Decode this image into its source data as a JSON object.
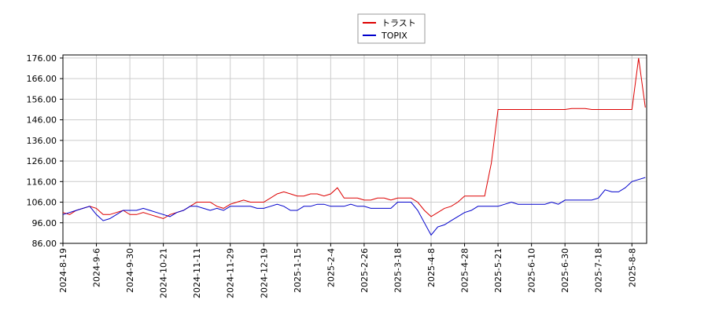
{
  "chart_data": {
    "type": "line",
    "categories": [
      "2024-8-19",
      null,
      null,
      null,
      null,
      "2024-9-6",
      null,
      null,
      null,
      null,
      "2024-9-30",
      null,
      null,
      null,
      null,
      "2024-10-21",
      null,
      null,
      null,
      null,
      "2024-11-11",
      null,
      null,
      null,
      null,
      "2024-11-29",
      null,
      null,
      null,
      null,
      "2024-12-19",
      null,
      null,
      null,
      null,
      "2025-1-15",
      null,
      null,
      null,
      null,
      "2025-2-4",
      null,
      null,
      null,
      null,
      "2025-2-26",
      null,
      null,
      null,
      null,
      "2025-3-18",
      null,
      null,
      null,
      null,
      "2025-4-8",
      null,
      null,
      null,
      null,
      "2025-4-28",
      null,
      null,
      null,
      null,
      "2025-5-21",
      null,
      null,
      null,
      null,
      "2025-6-10",
      null,
      null,
      null,
      null,
      "2025-6-30",
      null,
      null,
      null,
      null,
      "2025-7-18",
      null,
      null,
      null,
      null,
      "2025-8-8",
      null,
      null
    ],
    "series": [
      {
        "name": "トラスト",
        "color": "#dd0000",
        "values": [
          101,
          100,
          102,
          103,
          104,
          103,
          100,
          100,
          101,
          102,
          100,
          100,
          101,
          100,
          99,
          98,
          100,
          101,
          102,
          104,
          106,
          106,
          106,
          104,
          103,
          105,
          106,
          107,
          106,
          106,
          106,
          108,
          110,
          111,
          110,
          109,
          109,
          110,
          110,
          109,
          110,
          113,
          108,
          108,
          108,
          107,
          107,
          108,
          108,
          107,
          108,
          108,
          108,
          106,
          102,
          99,
          101,
          103,
          104,
          106,
          109,
          109,
          109,
          109,
          125,
          151,
          151,
          151,
          151,
          151,
          151,
          151,
          151,
          151,
          151,
          151,
          151.5,
          151.5,
          151.5,
          151,
          151,
          151,
          151,
          151,
          151,
          151,
          176,
          152
        ]
      },
      {
        "name": "TOPIX",
        "color": "#0000cc",
        "values": [
          100,
          101,
          102,
          103,
          104,
          100,
          97,
          98,
          100,
          102,
          102,
          102,
          103,
          102,
          101,
          100,
          99,
          101,
          102,
          104,
          104,
          103,
          102,
          103,
          102,
          104,
          104,
          104,
          104,
          103,
          103,
          104,
          105,
          104,
          102,
          102,
          104,
          104,
          105,
          105,
          104,
          104,
          104,
          105,
          104,
          104,
          103,
          103,
          103,
          103,
          106,
          106,
          106,
          102,
          96,
          90,
          94,
          95,
          97,
          99,
          101,
          102,
          104,
          104,
          104,
          104,
          105,
          106,
          105,
          105,
          105,
          105,
          105,
          106,
          105,
          107,
          107,
          107,
          107,
          107,
          108,
          112,
          111,
          111,
          113,
          116,
          117,
          118
        ]
      }
    ],
    "ylim": [
      86,
      177.5
    ],
    "yticks": [
      {
        "value": 86,
        "label": "86.00"
      },
      {
        "value": 96,
        "label": "96.00"
      },
      {
        "value": 106,
        "label": "106.00"
      },
      {
        "value": 116,
        "label": "116.00"
      },
      {
        "value": 126,
        "label": "126.00"
      },
      {
        "value": 136,
        "label": "136.00"
      },
      {
        "value": 146,
        "label": "146.00"
      },
      {
        "value": 156,
        "label": "156.00"
      },
      {
        "value": 166,
        "label": "166.00"
      },
      {
        "value": 176,
        "label": "176.00"
      }
    ],
    "grid": true
  }
}
